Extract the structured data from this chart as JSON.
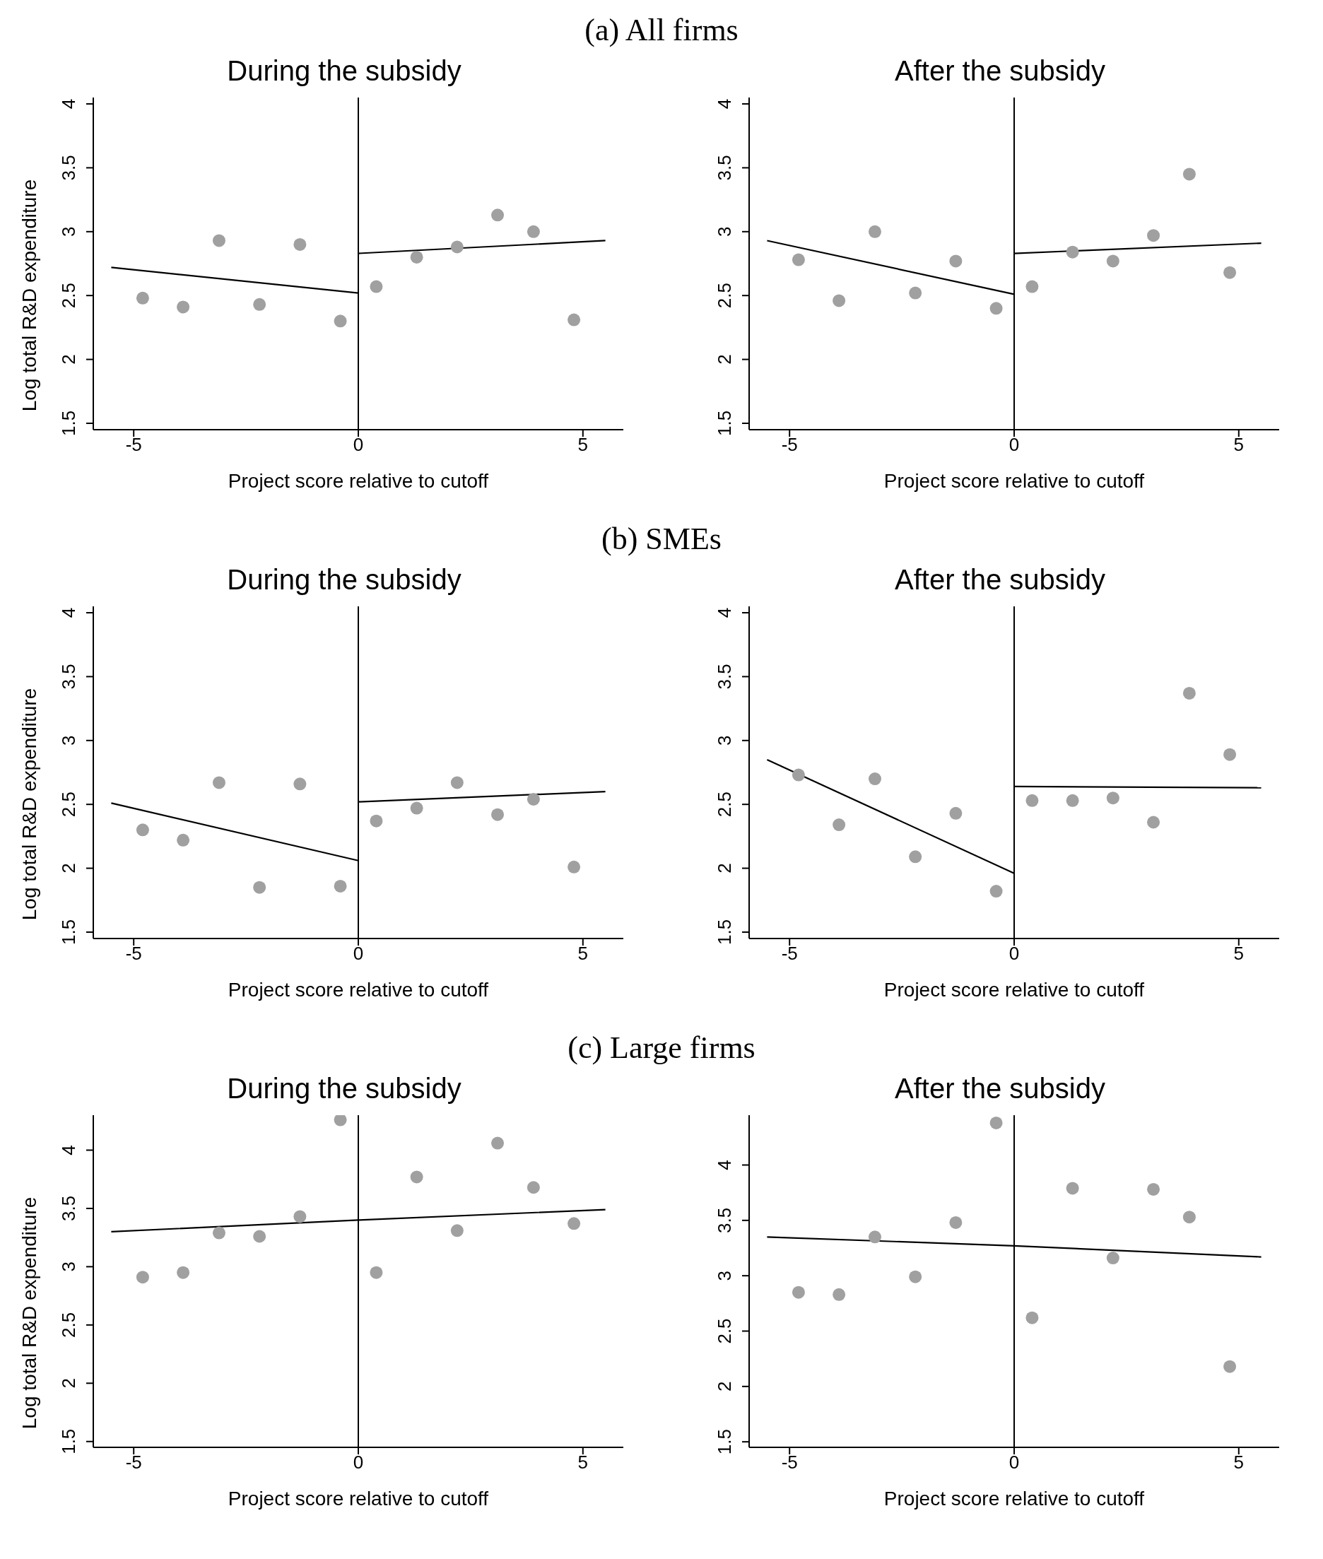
{
  "chart_data": [
    {
      "type": "scatter",
      "title": "During the subsidy",
      "annotations": [
        "(a) All firms"
      ],
      "xlabel": "Project score relative to cutoff",
      "ylabel": "Log total R&D expenditure",
      "xlim": [
        -5.9,
        5.9
      ],
      "xticks": [
        -5,
        0,
        5
      ],
      "ylim": [
        1.45,
        4.05
      ],
      "yticks": [
        1.5,
        2,
        2.5,
        3,
        3.5,
        4
      ],
      "grid": false,
      "ref_lines": [
        {
          "axis": "x",
          "value": 0,
          "color": "#000000"
        }
      ],
      "series": [
        {
          "marker": "circle",
          "color": "#a0a0a0",
          "x": [
            -4.8,
            -3.9,
            -3.1,
            -2.2,
            -1.3,
            -0.4,
            0.4,
            1.3,
            2.2,
            3.1,
            3.9,
            4.8
          ],
          "values": [
            2.48,
            2.41,
            2.93,
            2.43,
            2.9,
            2.3,
            2.57,
            2.8,
            2.88,
            3.13,
            3.0,
            2.31
          ]
        },
        {
          "type": "line",
          "color": "#000000",
          "x": [
            -5.5,
            0
          ],
          "values": [
            2.72,
            2.52
          ]
        },
        {
          "type": "line",
          "color": "#000000",
          "x": [
            0,
            5.5
          ],
          "values": [
            2.83,
            2.93
          ]
        }
      ]
    },
    {
      "type": "scatter",
      "title": "After the subsidy",
      "xlabel": "Project score relative to cutoff",
      "xlim": [
        -5.9,
        5.9
      ],
      "xticks": [
        -5,
        0,
        5
      ],
      "ylim": [
        1.45,
        4.05
      ],
      "yticks": [
        1.5,
        2,
        2.5,
        3,
        3.5,
        4
      ],
      "grid": false,
      "ref_lines": [
        {
          "axis": "x",
          "value": 0,
          "color": "#000000"
        }
      ],
      "series": [
        {
          "marker": "circle",
          "color": "#a0a0a0",
          "x": [
            -4.8,
            -3.9,
            -3.1,
            -2.2,
            -1.3,
            -0.4,
            0.4,
            1.3,
            2.2,
            3.1,
            3.9,
            4.8
          ],
          "values": [
            2.78,
            2.46,
            3.0,
            2.52,
            2.77,
            2.4,
            2.57,
            2.84,
            2.77,
            2.97,
            3.45,
            2.68
          ]
        },
        {
          "type": "line",
          "color": "#000000",
          "x": [
            -5.5,
            0
          ],
          "values": [
            2.93,
            2.51
          ]
        },
        {
          "type": "line",
          "color": "#000000",
          "x": [
            0,
            5.5
          ],
          "values": [
            2.83,
            2.91
          ]
        }
      ]
    },
    {
      "type": "scatter",
      "title": "During the subsidy",
      "annotations": [
        "(b) SMEs"
      ],
      "xlabel": "Project score relative to cutoff",
      "ylabel": "Log total R&D expenditure",
      "xlim": [
        -5.9,
        5.9
      ],
      "xticks": [
        -5,
        0,
        5
      ],
      "ylim": [
        1.45,
        4.05
      ],
      "yticks": [
        1.5,
        2,
        2.5,
        3,
        3.5,
        4
      ],
      "grid": false,
      "ref_lines": [
        {
          "axis": "x",
          "value": 0,
          "color": "#000000"
        }
      ],
      "series": [
        {
          "marker": "circle",
          "color": "#a0a0a0",
          "x": [
            -4.8,
            -3.9,
            -3.1,
            -2.2,
            -1.3,
            -0.4,
            0.4,
            1.3,
            2.2,
            3.1,
            3.9,
            4.8
          ],
          "values": [
            2.3,
            2.22,
            2.67,
            1.85,
            2.66,
            1.86,
            2.37,
            2.47,
            2.67,
            2.42,
            2.54,
            2.01
          ]
        },
        {
          "type": "line",
          "color": "#000000",
          "x": [
            -5.5,
            0
          ],
          "values": [
            2.51,
            2.06
          ]
        },
        {
          "type": "line",
          "color": "#000000",
          "x": [
            0,
            5.5
          ],
          "values": [
            2.52,
            2.6
          ]
        }
      ]
    },
    {
      "type": "scatter",
      "title": "After the subsidy",
      "xlabel": "Project score relative to cutoff",
      "xlim": [
        -5.9,
        5.9
      ],
      "xticks": [
        -5,
        0,
        5
      ],
      "ylim": [
        1.45,
        4.05
      ],
      "yticks": [
        1.5,
        2,
        2.5,
        3,
        3.5,
        4
      ],
      "grid": false,
      "ref_lines": [
        {
          "axis": "x",
          "value": 0,
          "color": "#000000"
        }
      ],
      "series": [
        {
          "marker": "circle",
          "color": "#a0a0a0",
          "x": [
            -4.8,
            -3.9,
            -3.1,
            -2.2,
            -1.3,
            -0.4,
            0.4,
            1.3,
            2.2,
            3.1,
            3.9,
            4.8
          ],
          "values": [
            2.73,
            2.34,
            2.7,
            2.09,
            2.43,
            1.82,
            2.53,
            2.53,
            2.55,
            2.36,
            3.37,
            2.89
          ]
        },
        {
          "type": "line",
          "color": "#000000",
          "x": [
            -5.5,
            0
          ],
          "values": [
            2.85,
            1.96
          ]
        },
        {
          "type": "line",
          "color": "#000000",
          "x": [
            0,
            5.5
          ],
          "values": [
            2.64,
            2.63
          ]
        }
      ]
    },
    {
      "type": "scatter",
      "title": "During the subsidy",
      "annotations": [
        "(c) Large firms"
      ],
      "xlabel": "Project score relative to cutoff",
      "ylabel": "Log total R&D expenditure",
      "xlim": [
        -5.9,
        5.9
      ],
      "xticks": [
        -5,
        0,
        5
      ],
      "ylim": [
        1.45,
        4.3
      ],
      "yticks": [
        1.5,
        2,
        2.5,
        3,
        3.5,
        4
      ],
      "grid": false,
      "ref_lines": [
        {
          "axis": "x",
          "value": 0,
          "color": "#000000"
        }
      ],
      "series": [
        {
          "marker": "circle",
          "color": "#a0a0a0",
          "x": [
            -4.8,
            -3.9,
            -3.1,
            -2.2,
            -1.3,
            -0.4,
            0.4,
            1.3,
            2.2,
            3.1,
            3.9,
            4.8
          ],
          "values": [
            2.91,
            2.95,
            3.29,
            3.26,
            3.43,
            4.26,
            2.95,
            3.77,
            3.31,
            4.06,
            3.68,
            3.37
          ]
        },
        {
          "type": "line",
          "color": "#000000",
          "x": [
            -5.5,
            0,
            5.5
          ],
          "values": [
            3.3,
            3.4,
            3.49
          ]
        }
      ]
    },
    {
      "type": "scatter",
      "title": "After the subsidy",
      "xlabel": "Project score relative to cutoff",
      "xlim": [
        -5.9,
        5.9
      ],
      "xticks": [
        -5,
        0,
        5
      ],
      "ylim": [
        1.45,
        4.45
      ],
      "yticks": [
        1.5,
        2,
        2.5,
        3,
        3.5,
        4
      ],
      "grid": false,
      "ref_lines": [
        {
          "axis": "x",
          "value": 0,
          "color": "#000000"
        }
      ],
      "series": [
        {
          "marker": "circle",
          "color": "#a0a0a0",
          "x": [
            -4.8,
            -3.9,
            -3.1,
            -2.2,
            -1.3,
            -0.4,
            0.4,
            1.3,
            2.2,
            3.1,
            3.9,
            4.8
          ],
          "values": [
            2.85,
            2.83,
            3.35,
            2.99,
            3.48,
            4.38,
            2.62,
            3.79,
            3.16,
            3.78,
            3.53,
            2.18
          ]
        },
        {
          "type": "line",
          "color": "#000000",
          "x": [
            -5.5,
            0,
            5.5
          ],
          "values": [
            3.35,
            3.27,
            3.17
          ]
        }
      ]
    }
  ]
}
